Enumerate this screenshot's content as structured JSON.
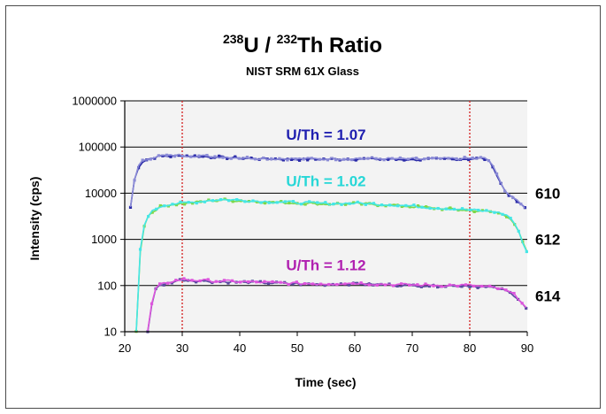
{
  "chart_data": {
    "type": "line",
    "title": "238U / 232Th Ratio",
    "title_parts": {
      "sup1": "238",
      "base1": "U / ",
      "sup2": "232",
      "base2": "Th Ratio"
    },
    "subtitle": "NIST SRM 61X Glass",
    "xlabel": "Time (sec)",
    "ylabel": "Intensity (cps)",
    "xlim": [
      20,
      90
    ],
    "ylim": [
      10,
      1000000
    ],
    "y_scale": "log",
    "x_ticks": [
      "20",
      "30",
      "40",
      "50",
      "60",
      "70",
      "80",
      "90"
    ],
    "y_ticks": [
      "10",
      "100",
      "1000",
      "10000",
      "100000",
      "1000000"
    ],
    "grid": "horizontal",
    "vertical_markers": {
      "x": [
        30,
        80
      ],
      "color": "#d62b2b"
    },
    "plot_background": "#f3f3f3",
    "series": [
      {
        "color_u": "#8b8bd6",
        "color_th": "#2a2aa8",
        "x": [
          21,
          21.5,
          22,
          22.5,
          23,
          24,
          25,
          26,
          27,
          28,
          30,
          32,
          35,
          40,
          45,
          50,
          55,
          60,
          65,
          70,
          75,
          80,
          82,
          83,
          84,
          85,
          86,
          87,
          88,
          89,
          90
        ],
        "values": [
          5000,
          15000,
          30000,
          40000,
          48000,
          55000,
          60000,
          63000,
          65000,
          64000,
          66000,
          64000,
          62000,
          58000,
          56000,
          55000,
          55000,
          56000,
          55000,
          54000,
          55000,
          56000,
          57000,
          55000,
          40000,
          20000,
          12000,
          9000,
          7000,
          5500,
          4500
        ]
      },
      {
        "color_u": "#45e6e6",
        "color_th": "#7cd84a",
        "x": [
          22,
          22.5,
          23,
          24,
          25,
          26,
          27,
          28,
          30,
          33,
          35,
          37,
          40,
          45,
          50,
          55,
          60,
          65,
          70,
          75,
          80,
          82,
          84,
          85,
          86,
          87,
          88,
          89,
          90
        ],
        "values": [
          10,
          300,
          1500,
          3200,
          4200,
          5000,
          5500,
          5800,
          6000,
          6500,
          7000,
          7200,
          7000,
          6500,
          6200,
          5900,
          6000,
          5700,
          5200,
          4700,
          4300,
          4100,
          4000,
          3700,
          3500,
          3000,
          2000,
          1000,
          500
        ]
      },
      {
        "color_u": "#dd55dd",
        "color_th": "#5a4aa0",
        "x": [
          24,
          24.5,
          25,
          25.5,
          26,
          27,
          28,
          30,
          32,
          35,
          40,
          45,
          50,
          55,
          60,
          65,
          70,
          75,
          80,
          82,
          84,
          85,
          86,
          87,
          88,
          89,
          90
        ],
        "values": [
          10,
          30,
          60,
          90,
          100,
          110,
          120,
          135,
          130,
          125,
          120,
          115,
          110,
          108,
          112,
          105,
          102,
          100,
          100,
          95,
          90,
          85,
          80,
          70,
          60,
          45,
          30
        ]
      }
    ],
    "annotations": [
      {
        "text": "U/Th = 1.07",
        "color": "#1f1fb0",
        "x": 55,
        "y": 100000
      },
      {
        "text": "U/Th = 1.02",
        "color": "#27d7d7",
        "x": 55,
        "y": 10000
      },
      {
        "text": "U/Th = 1.12",
        "color": "#b020b0",
        "x": 55,
        "y": 150
      }
    ],
    "sample_labels": [
      {
        "text": "610",
        "y": 10000
      },
      {
        "text": "612",
        "y": 1000
      },
      {
        "text": "614",
        "y": 60
      }
    ]
  }
}
